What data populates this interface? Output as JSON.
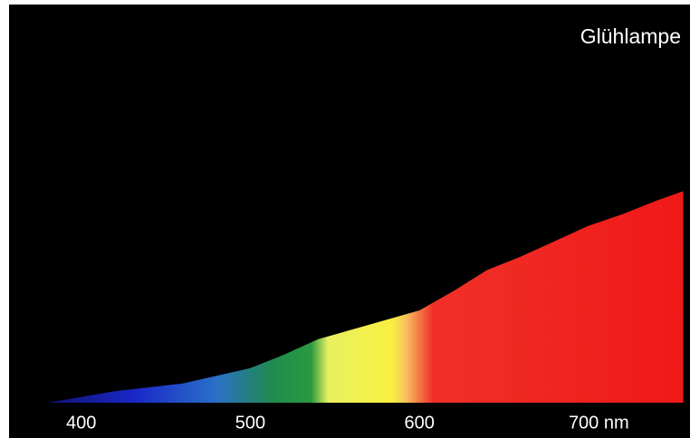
{
  "chart_data": {
    "type": "area",
    "title": "Glühlampe",
    "x": [
      380,
      400,
      420,
      440,
      460,
      480,
      500,
      520,
      540,
      560,
      580,
      600,
      620,
      640,
      660,
      680,
      700,
      720,
      740,
      756
    ],
    "values": [
      0,
      1.5,
      3,
      4,
      5,
      7,
      9,
      12.5,
      16.5,
      19,
      21.5,
      24,
      29,
      34.5,
      38,
      42,
      46,
      49,
      52.5,
      55
    ],
    "xlim": [
      360,
      760
    ],
    "xticks": [
      400,
      500,
      600,
      {
        "value": 700,
        "label": "700 nm"
      }
    ],
    "ylim": [
      0,
      100
    ]
  }
}
